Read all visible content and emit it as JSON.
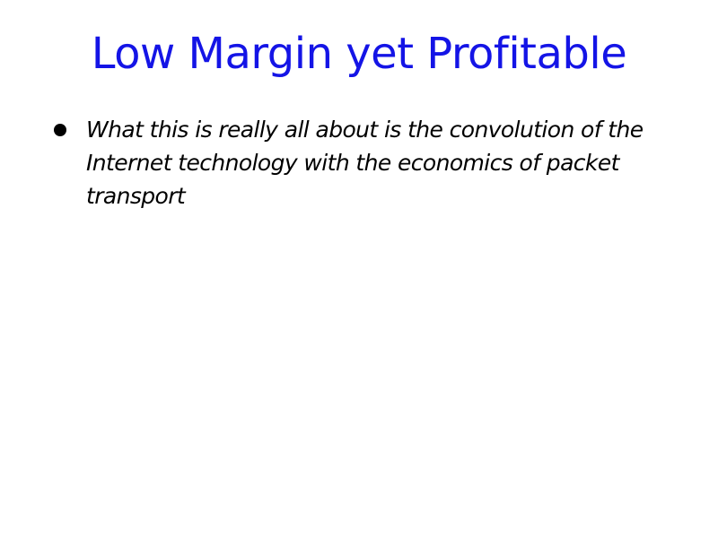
{
  "slide": {
    "title": "Low Margin yet Profitable",
    "bullets": [
      {
        "text": "What this is really all about is the convolution of the Internet technology with the economics of packet transport"
      }
    ]
  }
}
